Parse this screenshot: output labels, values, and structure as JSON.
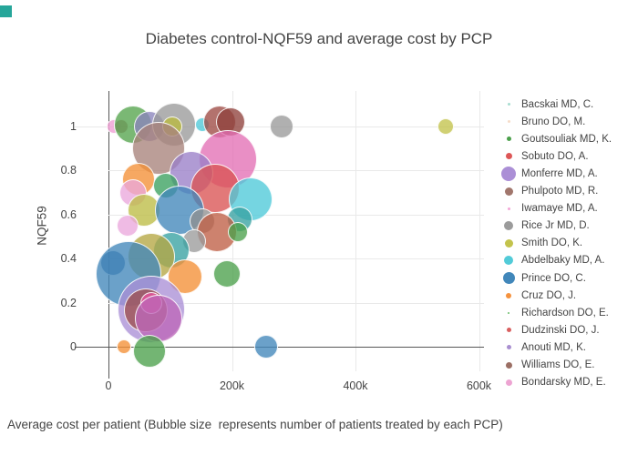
{
  "page": {
    "corner_accent_color": "#26a69a",
    "background": "#ffffff"
  },
  "title": "Diabetes control-NQF59 and average cost by PCP",
  "caption": "Average cost per patient (Bubble size  represents number of patients treated by each PCP)",
  "axes": {
    "y_title": "NQF59",
    "x_ticks": [
      {
        "value": 0,
        "label": "0"
      },
      {
        "value": 200000,
        "label": "200k"
      },
      {
        "value": 400000,
        "label": "400k"
      },
      {
        "value": 600000,
        "label": "600k"
      }
    ],
    "y_ticks": [
      {
        "value": 0,
        "label": "0"
      },
      {
        "value": 0.2,
        "label": "0.2"
      },
      {
        "value": 0.4,
        "label": "0.4"
      },
      {
        "value": 0.6,
        "label": "0.6"
      },
      {
        "value": 0.8,
        "label": "0.8"
      },
      {
        "value": 1,
        "label": "1"
      }
    ],
    "grid_color": "#e9e9e9",
    "zero_line_color": "#565656"
  },
  "legend": {
    "items": [
      {
        "label": "Bacskai MD, C.",
        "color": "#a8ddd0",
        "size": 3
      },
      {
        "label": "Bruno DO, M.",
        "color": "#f6dcc9",
        "size": 3
      },
      {
        "label": "Goutsouliak MD, K.",
        "color": "#4ba04b",
        "size": 5
      },
      {
        "label": "Sobuto DO, A.",
        "color": "#dd5757",
        "size": 7
      },
      {
        "label": "Monferre MD, A.",
        "color": "#ab8fd6",
        "size": 16
      },
      {
        "label": "Phulpoto MD, R.",
        "color": "#a1766c",
        "size": 9
      },
      {
        "label": "Iwamaye MD, A.",
        "color": "#f4a6d7",
        "size": 3
      },
      {
        "label": "Rice Jr MD, D.",
        "color": "#9b9b9b",
        "size": 10
      },
      {
        "label": "Smith DO, K.",
        "color": "#c3c34c",
        "size": 9
      },
      {
        "label": "Abdelbaky MD, A.",
        "color": "#52cbd8",
        "size": 10
      },
      {
        "label": "Prince DO, C.",
        "color": "#4187ba",
        "size": 13
      },
      {
        "label": "Cruz DO, J.",
        "color": "#f5923e",
        "size": 6
      },
      {
        "label": "Richardson DO, E.",
        "color": "#6abf6a",
        "size": 2
      },
      {
        "label": "Dudzinski DO, J.",
        "color": "#d95f5f",
        "size": 5
      },
      {
        "label": "Anouti MD, K.",
        "color": "#a98fd0",
        "size": 5
      },
      {
        "label": "Williams DO, E.",
        "color": "#9b6f64",
        "size": 7
      },
      {
        "label": "Bondarsky MD, E.",
        "color": "#eda4d2",
        "size": 7
      }
    ]
  },
  "chart_data": {
    "type": "scatter",
    "subtype": "bubble",
    "title": "Diabetes control-NQF59 and average cost by PCP",
    "xlabel": "Average cost per patient",
    "ylabel": "NQF59",
    "x_range": [
      0,
      620000
    ],
    "y_range": [
      -0.12,
      1.17
    ],
    "grid": true,
    "legend_position": "right",
    "size_note": "Bubble size represents number of patients treated by each PCP",
    "points": [
      {
        "x": 9000,
        "y": 1.0,
        "r": 8,
        "color": "#ef9ed4"
      },
      {
        "x": 21000,
        "y": 1.0,
        "r": 8,
        "color": "#b86c80"
      },
      {
        "x": 40000,
        "y": 1.01,
        "r": 21,
        "color": "#55a44d"
      },
      {
        "x": 66000,
        "y": 1.0,
        "r": 17,
        "color": "#8b84bd"
      },
      {
        "x": 106000,
        "y": 1.01,
        "r": 24,
        "color": "#9a9a9a"
      },
      {
        "x": 103000,
        "y": 1.0,
        "r": 11,
        "color": "#b9b93e"
      },
      {
        "x": 152000,
        "y": 1.01,
        "r": 8,
        "color": "#4ec9d9"
      },
      {
        "x": 180000,
        "y": 1.02,
        "r": 18,
        "color": "#9e4a44"
      },
      {
        "x": 198000,
        "y": 1.02,
        "r": 16,
        "color": "#8f413c"
      },
      {
        "x": 280000,
        "y": 1.0,
        "r": 13,
        "color": "#9a9a9a"
      },
      {
        "x": 546000,
        "y": 1.0,
        "r": 9,
        "color": "#c3c34c"
      },
      {
        "x": 81000,
        "y": 0.9,
        "r": 29,
        "color": "#a8837b"
      },
      {
        "x": 193000,
        "y": 0.85,
        "r": 32,
        "color": "#e370b5"
      },
      {
        "x": 134000,
        "y": 0.79,
        "r": 24,
        "color": "#9a7fc8"
      },
      {
        "x": 49000,
        "y": 0.76,
        "r": 18,
        "color": "#f39036"
      },
      {
        "x": 40000,
        "y": 0.7,
        "r": 15,
        "color": "#eba8dc"
      },
      {
        "x": 173000,
        "y": 0.72,
        "r": 27,
        "color": "#da5353"
      },
      {
        "x": 93000,
        "y": 0.73,
        "r": 14,
        "color": "#3aa05f"
      },
      {
        "x": 58000,
        "y": 0.62,
        "r": 18,
        "color": "#bcbc45"
      },
      {
        "x": 115000,
        "y": 0.62,
        "r": 27,
        "color": "#4187ba"
      },
      {
        "x": 230000,
        "y": 0.67,
        "r": 24,
        "color": "#4ec9d9"
      },
      {
        "x": 213000,
        "y": 0.58,
        "r": 14,
        "color": "#37a2a2"
      },
      {
        "x": 152000,
        "y": 0.57,
        "r": 14,
        "color": "#8f8f8f"
      },
      {
        "x": 176000,
        "y": 0.52,
        "r": 22,
        "color": "#bf5f45"
      },
      {
        "x": 210000,
        "y": 0.52,
        "r": 11,
        "color": "#4ba04b"
      },
      {
        "x": 139000,
        "y": 0.48,
        "r": 13,
        "color": "#9b9b9b"
      },
      {
        "x": 102000,
        "y": 0.44,
        "r": 20,
        "color": "#37a2a2"
      },
      {
        "x": 69000,
        "y": 0.41,
        "r": 26,
        "color": "#b5a642"
      },
      {
        "x": 31000,
        "y": 0.55,
        "r": 12,
        "color": "#eba8dc"
      },
      {
        "x": 7000,
        "y": 0.38,
        "r": 14,
        "color": "#3c6fa8"
      },
      {
        "x": 32000,
        "y": 0.33,
        "r": 36,
        "color": "#4187ba"
      },
      {
        "x": 124000,
        "y": 0.32,
        "r": 19,
        "color": "#f39036"
      },
      {
        "x": 192000,
        "y": 0.33,
        "r": 15,
        "color": "#4ba04b"
      },
      {
        "x": 69000,
        "y": 0.17,
        "r": 37,
        "color": "#ab8fd6"
      },
      {
        "x": 61000,
        "y": 0.165,
        "r": 24,
        "color": "#9c5050"
      },
      {
        "x": 69000,
        "y": 0.2,
        "r": 12,
        "color": "#e8559e"
      },
      {
        "x": 81000,
        "y": 0.13,
        "r": 26,
        "color": "#bc66b8"
      },
      {
        "x": 25000,
        "y": 0.0,
        "r": 8,
        "color": "#f39036"
      },
      {
        "x": 66000,
        "y": -0.02,
        "r": 18,
        "color": "#4ba04b"
      },
      {
        "x": 255000,
        "y": 0.0,
        "r": 13,
        "color": "#4187ba"
      }
    ]
  }
}
